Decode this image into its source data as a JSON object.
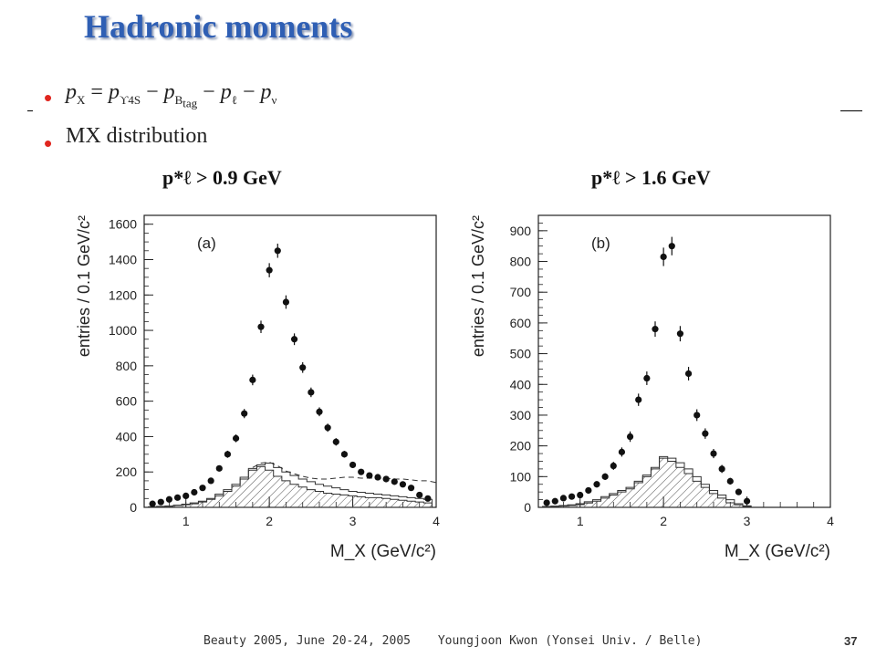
{
  "slide": {
    "title": "Hadronic moments",
    "footer": {
      "event": "Beauty 2005, June 20-24, 2005",
      "author": "Youngjoon Kwon (Yonsei Univ. / Belle)",
      "page": "37"
    }
  },
  "bullets": [
    {
      "formula": {
        "lhs": "pX",
        "rhs": [
          "pΥ4S",
          "pBtag",
          "pℓ",
          "pν"
        ]
      }
    },
    {
      "text": "MX distribution"
    }
  ],
  "chart_data": [
    {
      "type": "scatter",
      "cut_label": "p*ℓ > 0.9 GeV",
      "panel_label": "(a)",
      "xlabel": "M_X (GeV/c²)",
      "ylabel": "entries / 0.1 GeV/c²",
      "xlim": [
        0.5,
        4.0
      ],
      "ylim": [
        0,
        1650
      ],
      "xticks": [
        1,
        2,
        3,
        4
      ],
      "yticks": [
        0,
        200,
        400,
        600,
        800,
        1000,
        1200,
        1400,
        1600
      ],
      "series": [
        {
          "style": "points",
          "x": [
            0.6,
            0.7,
            0.8,
            0.9,
            1.0,
            1.1,
            1.2,
            1.3,
            1.4,
            1.5,
            1.6,
            1.7,
            1.8,
            1.9,
            2.0,
            2.1,
            2.2,
            2.3,
            2.4,
            2.5,
            2.6,
            2.7,
            2.8,
            2.9,
            3.0,
            3.1,
            3.2,
            3.3,
            3.4,
            3.5,
            3.6,
            3.7,
            3.8,
            3.9
          ],
          "y": [
            20,
            30,
            45,
            55,
            65,
            85,
            110,
            150,
            220,
            300,
            390,
            530,
            720,
            1020,
            1340,
            1450,
            1160,
            950,
            790,
            650,
            540,
            450,
            370,
            300,
            240,
            200,
            180,
            170,
            160,
            145,
            130,
            110,
            70,
            50
          ],
          "yerr": [
            8,
            9,
            10,
            10,
            11,
            12,
            13,
            15,
            17,
            20,
            22,
            26,
            30,
            35,
            40,
            40,
            38,
            33,
            30,
            27,
            25,
            23,
            21,
            19,
            17,
            16,
            15,
            14,
            14,
            13,
            12,
            11,
            10,
            9
          ]
        },
        {
          "style": "step-hatched",
          "x": [
            0.6,
            0.7,
            0.8,
            0.9,
            1.0,
            1.1,
            1.2,
            1.3,
            1.4,
            1.5,
            1.6,
            1.7,
            1.8,
            1.9,
            2.0,
            2.1,
            2.2,
            2.3,
            2.4,
            2.5,
            2.6,
            2.7,
            2.8,
            2.9,
            3.0,
            3.1,
            3.2,
            3.3,
            3.4,
            3.5,
            3.6,
            3.7,
            3.8,
            3.9
          ],
          "y": [
            2,
            4,
            6,
            10,
            15,
            20,
            30,
            45,
            65,
            90,
            120,
            160,
            210,
            230,
            210,
            175,
            150,
            130,
            115,
            100,
            90,
            80,
            75,
            70,
            65,
            60,
            55,
            55,
            50,
            45,
            40,
            35,
            30,
            25
          ]
        },
        {
          "style": "step-open",
          "x": [
            0.6,
            0.7,
            0.8,
            0.9,
            1.0,
            1.1,
            1.2,
            1.3,
            1.4,
            1.5,
            1.6,
            1.7,
            1.8,
            1.9,
            2.0,
            2.1,
            2.2,
            2.3,
            2.4,
            2.5,
            2.6,
            2.7,
            2.8,
            2.9,
            3.0,
            3.1,
            3.2,
            3.3,
            3.4,
            3.5,
            3.6,
            3.7,
            3.8,
            3.9
          ],
          "y": [
            3,
            6,
            8,
            12,
            18,
            25,
            35,
            50,
            75,
            100,
            130,
            170,
            220,
            240,
            250,
            225,
            200,
            180,
            160,
            145,
            130,
            120,
            110,
            100,
            90,
            85,
            80,
            75,
            70,
            65,
            60,
            55,
            50,
            45
          ]
        },
        {
          "style": "dashed",
          "x": [
            1.8,
            1.9,
            2.0,
            2.1,
            2.2,
            2.3,
            2.4,
            2.5,
            2.6,
            2.7,
            2.8,
            2.9,
            3.0,
            3.1,
            3.2,
            3.3,
            3.4,
            3.5,
            3.6,
            3.7,
            3.8,
            3.9,
            4.0
          ],
          "y": [
            225,
            250,
            255,
            235,
            205,
            190,
            175,
            165,
            160,
            160,
            165,
            170,
            170,
            165,
            165,
            165,
            165,
            160,
            160,
            155,
            150,
            150,
            140
          ]
        }
      ]
    },
    {
      "type": "scatter",
      "cut_label": "p*ℓ > 1.6 GeV",
      "panel_label": "(b)",
      "xlabel": "M_X (GeV/c²)",
      "ylabel": "entries / 0.1 GeV/c²",
      "xlim": [
        0.5,
        4.0
      ],
      "ylim": [
        0,
        950
      ],
      "xticks": [
        1,
        2,
        3,
        4
      ],
      "yticks": [
        0,
        100,
        200,
        300,
        400,
        500,
        600,
        700,
        800,
        900
      ],
      "series": [
        {
          "style": "points",
          "x": [
            0.6,
            0.7,
            0.8,
            0.9,
            1.0,
            1.1,
            1.2,
            1.3,
            1.4,
            1.5,
            1.6,
            1.7,
            1.8,
            1.9,
            2.0,
            2.1,
            2.2,
            2.3,
            2.4,
            2.5,
            2.6,
            2.7,
            2.8,
            2.9,
            3.0
          ],
          "y": [
            15,
            20,
            30,
            35,
            40,
            55,
            75,
            100,
            135,
            180,
            230,
            350,
            420,
            580,
            815,
            850,
            565,
            435,
            300,
            240,
            175,
            125,
            85,
            50,
            20
          ],
          "yerr": [
            5,
            6,
            7,
            7,
            8,
            9,
            10,
            11,
            13,
            15,
            17,
            20,
            22,
            25,
            30,
            30,
            25,
            22,
            19,
            17,
            15,
            13,
            11,
            8,
            6
          ]
        },
        {
          "style": "step-hatched",
          "x": [
            0.6,
            0.7,
            0.8,
            0.9,
            1.0,
            1.1,
            1.2,
            1.3,
            1.4,
            1.5,
            1.6,
            1.7,
            1.8,
            1.9,
            2.0,
            2.1,
            2.2,
            2.3,
            2.4,
            2.5,
            2.6,
            2.7,
            2.8,
            2.9,
            3.0
          ],
          "y": [
            2,
            3,
            4,
            6,
            9,
            14,
            20,
            30,
            40,
            50,
            60,
            80,
            100,
            125,
            160,
            150,
            130,
            110,
            85,
            65,
            45,
            30,
            15,
            8,
            3
          ]
        },
        {
          "style": "step-open",
          "x": [
            0.6,
            0.7,
            0.8,
            0.9,
            1.0,
            1.1,
            1.2,
            1.3,
            1.4,
            1.5,
            1.6,
            1.7,
            1.8,
            1.9,
            2.0,
            2.1,
            2.2,
            2.3,
            2.4,
            2.5,
            2.6,
            2.7,
            2.8,
            2.9,
            3.0
          ],
          "y": [
            3,
            4,
            6,
            8,
            12,
            18,
            25,
            35,
            45,
            55,
            65,
            85,
            105,
            130,
            165,
            160,
            145,
            125,
            100,
            75,
            55,
            40,
            25,
            12,
            5
          ]
        }
      ]
    }
  ]
}
